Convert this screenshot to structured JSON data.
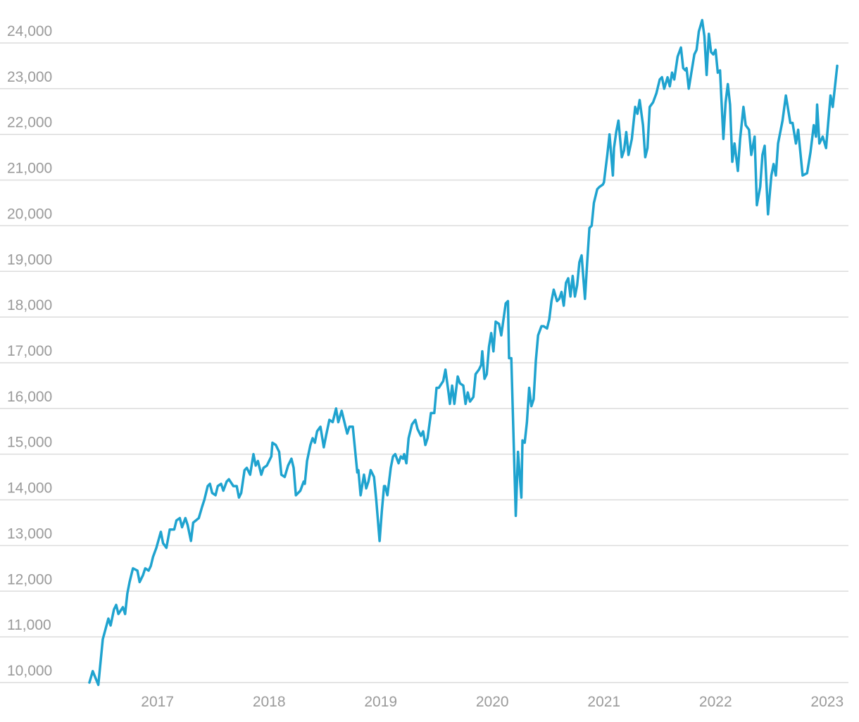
{
  "chart_data": {
    "type": "line",
    "color": "#1fa3cf",
    "grid": true,
    "xlim": [
      2016.3,
      2023.2
    ],
    "xticks": [
      2017,
      2018,
      2019,
      2020,
      2021,
      2022,
      2023
    ],
    "ylim": [
      9900,
      24700
    ],
    "yticks": [
      {
        "value": 10000,
        "label": "10,000"
      },
      {
        "value": 11000,
        "label": "11,000"
      },
      {
        "value": 12000,
        "label": "12,000"
      },
      {
        "value": 13000,
        "label": "13,000"
      },
      {
        "value": 14000,
        "label": "14,000"
      },
      {
        "value": 15000,
        "label": "15,000"
      },
      {
        "value": 16000,
        "label": "16,000"
      },
      {
        "value": 17000,
        "label": "17,000"
      },
      {
        "value": 18000,
        "label": "18,000"
      },
      {
        "value": 19000,
        "label": "19,000"
      },
      {
        "value": 20000,
        "label": "20,000"
      },
      {
        "value": 21000,
        "label": "21,000"
      },
      {
        "value": 22000,
        "label": "22,000"
      },
      {
        "value": 23000,
        "label": "23,000"
      },
      {
        "value": 24000,
        "label": "24,000"
      }
    ],
    "x": [
      2016.39,
      2016.42,
      2016.47,
      2016.51,
      2016.56,
      2016.58,
      2016.61,
      2016.63,
      2016.65,
      2016.69,
      2016.71,
      2016.73,
      2016.75,
      2016.78,
      2016.82,
      2016.84,
      2016.87,
      2016.89,
      2016.92,
      2016.94,
      2016.96,
      2016.99,
      2017.03,
      2017.05,
      2017.08,
      2017.11,
      2017.15,
      2017.17,
      2017.2,
      2017.22,
      2017.25,
      2017.27,
      2017.3,
      2017.32,
      2017.37,
      2017.4,
      2017.42,
      2017.45,
      2017.47,
      2017.49,
      2017.52,
      2017.54,
      2017.57,
      2017.59,
      2017.62,
      2017.64,
      2017.68,
      2017.71,
      2017.73,
      2017.75,
      2017.78,
      2017.8,
      2017.83,
      2017.86,
      2017.88,
      2017.9,
      2017.93,
      2017.95,
      2017.98,
      2018.02,
      2018.03,
      2018.06,
      2018.09,
      2018.11,
      2018.14,
      2018.17,
      2018.2,
      2018.22,
      2018.24,
      2018.28,
      2018.31,
      2018.32,
      2018.34,
      2018.37,
      2018.39,
      2018.41,
      2018.43,
      2018.46,
      2018.49,
      2018.51,
      2018.54,
      2018.57,
      2018.6,
      2018.62,
      2018.65,
      2018.7,
      2018.72,
      2018.75,
      2018.79,
      2018.8,
      2018.82,
      2018.85,
      2018.87,
      2018.89,
      2018.91,
      2018.94,
      2018.96,
      2018.99,
      2019.01,
      2019.03,
      2019.04,
      2019.06,
      2019.09,
      2019.11,
      2019.13,
      2019.16,
      2019.18,
      2019.2,
      2019.21,
      2019.23,
      2019.25,
      2019.28,
      2019.31,
      2019.33,
      2019.36,
      2019.38,
      2019.4,
      2019.42,
      2019.45,
      2019.48,
      2019.5,
      2019.52,
      2019.56,
      2019.58,
      2019.61,
      2019.62,
      2019.64,
      2019.66,
      2019.69,
      2019.71,
      2019.74,
      2019.76,
      2019.78,
      2019.8,
      2019.83,
      2019.85,
      2019.88,
      2019.9,
      2019.91,
      2019.93,
      2019.95,
      2019.97,
      2019.99,
      2020.01,
      2020.03,
      2020.06,
      2020.08,
      2020.12,
      2020.14,
      2020.15,
      2020.17,
      2020.21,
      2020.23,
      2020.26,
      2020.27,
      2020.29,
      2020.31,
      2020.33,
      2020.35,
      2020.37,
      2020.39,
      2020.41,
      2020.44,
      2020.46,
      2020.49,
      2020.51,
      2020.53,
      2020.55,
      2020.58,
      2020.6,
      2020.62,
      2020.64,
      2020.66,
      2020.68,
      2020.7,
      2020.72,
      2020.74,
      2020.76,
      2020.78,
      2020.8,
      2020.83,
      2020.85,
      2020.87,
      2020.89,
      2020.91,
      2020.94,
      2020.96,
      2020.99,
      2021.0,
      2021.03,
      2021.05,
      2021.08,
      2021.09,
      2021.11,
      2021.13,
      2021.16,
      2021.18,
      2021.2,
      2021.22,
      2021.25,
      2021.28,
      2021.3,
      2021.32,
      2021.35,
      2021.37,
      2021.39,
      2021.41,
      2021.44,
      2021.47,
      2021.5,
      2021.52,
      2021.54,
      2021.57,
      2021.59,
      2021.61,
      2021.63,
      2021.66,
      2021.69,
      2021.71,
      2021.73,
      2021.74,
      2021.76,
      2021.78,
      2021.81,
      2021.83,
      2021.85,
      2021.88,
      2021.9,
      2021.92,
      2021.94,
      2021.96,
      2021.98,
      2022.0,
      2022.02,
      2022.04,
      2022.07,
      2022.09,
      2022.11,
      2022.13,
      2022.15,
      2022.17,
      2022.2,
      2022.22,
      2022.25,
      2022.27,
      2022.3,
      2022.32,
      2022.35,
      2022.37,
      2022.4,
      2022.42,
      2022.44,
      2022.47,
      2022.5,
      2022.52,
      2022.54,
      2022.56,
      2022.6,
      2022.63,
      2022.67,
      2022.69,
      2022.72,
      2022.74,
      2022.78,
      2022.82,
      2022.85,
      2022.88,
      2022.9,
      2022.91,
      2022.93,
      2022.96,
      2022.99,
      2023.03,
      2023.05,
      2023.09
    ],
    "values": [
      10000,
      10250,
      9950,
      10950,
      11400,
      11250,
      11600,
      11700,
      11500,
      11650,
      11500,
      11950,
      12200,
      12500,
      12450,
      12200,
      12350,
      12500,
      12450,
      12550,
      12750,
      12950,
      13300,
      13050,
      12950,
      13350,
      13350,
      13550,
      13600,
      13400,
      13600,
      13450,
      13100,
      13500,
      13600,
      13850,
      14000,
      14300,
      14350,
      14150,
      14100,
      14300,
      14350,
      14200,
      14400,
      14450,
      14300,
      14300,
      14050,
      14150,
      14650,
      14700,
      14550,
      15000,
      14750,
      14850,
      14550,
      14700,
      14750,
      14950,
      15250,
      15200,
      15050,
      14550,
      14500,
      14750,
      14900,
      14700,
      14100,
      14200,
      14400,
      14350,
      14850,
      15200,
      15350,
      15250,
      15500,
      15600,
      15150,
      15400,
      15750,
      15700,
      16000,
      15700,
      15950,
      15450,
      15600,
      15600,
      14600,
      14650,
      14100,
      14550,
      14250,
      14400,
      14650,
      14500,
      14000,
      13100,
      13750,
      14300,
      14300,
      14100,
      14700,
      14950,
      15000,
      14800,
      14950,
      14900,
      15000,
      14800,
      15350,
      15650,
      15750,
      15550,
      15400,
      15500,
      15200,
      15350,
      15900,
      15900,
      16450,
      16450,
      16600,
      16850,
      16300,
      16100,
      16500,
      16100,
      16700,
      16550,
      16500,
      16100,
      16350,
      16150,
      16250,
      16750,
      16850,
      16950,
      17250,
      16650,
      16750,
      17350,
      17650,
      17250,
      17900,
      17850,
      17600,
      18300,
      18350,
      17100,
      17100,
      13650,
      15050,
      14050,
      15300,
      15250,
      15700,
      16450,
      16050,
      16200,
      17050,
      17600,
      17800,
      17800,
      17750,
      17950,
      18350,
      18600,
      18350,
      18400,
      18550,
      18250,
      18750,
      18850,
      18450,
      18900,
      18450,
      18700,
      19200,
      19350,
      18400,
      19200,
      19950,
      20000,
      20500,
      20800,
      20850,
      20900,
      20950,
      21550,
      22000,
      21100,
      21700,
      22050,
      22300,
      21500,
      21650,
      22050,
      21550,
      21900,
      22600,
      22450,
      22750,
      22200,
      21500,
      21700,
      22600,
      22700,
      22900,
      23200,
      23250,
      23000,
      23250,
      23050,
      23350,
      23200,
      23700,
      23900,
      23450,
      23400,
      23450,
      23000,
      23300,
      23750,
      23850,
      24250,
      24500,
      24150,
      23300,
      24200,
      23800,
      23750,
      23850,
      23350,
      23400,
      21900,
      22700,
      23100,
      22650,
      21400,
      21800,
      21200,
      21900,
      22600,
      22200,
      22100,
      21550,
      21950,
      20450,
      20850,
      21550,
      21750,
      20250,
      21100,
      21350,
      21100,
      21800,
      22300,
      22850,
      22250,
      22250,
      21800,
      22100,
      21100,
      21150,
      21600,
      22200,
      21950,
      22650,
      21800,
      21950,
      21700,
      22850,
      22600,
      23500
    ]
  }
}
